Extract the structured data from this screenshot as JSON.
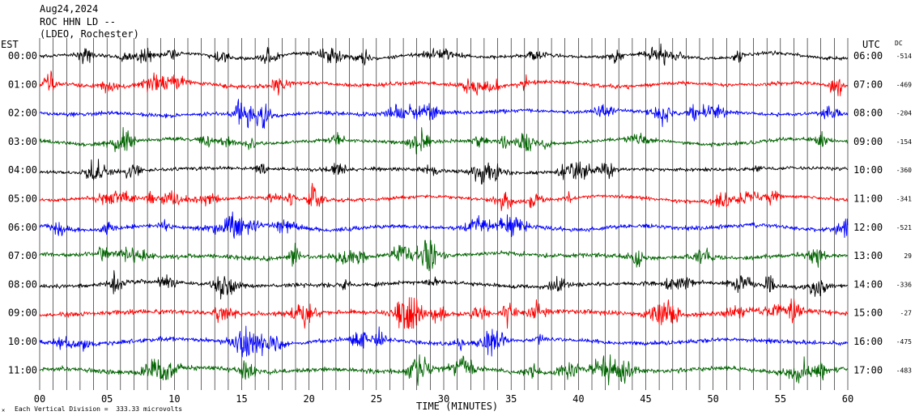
{
  "header": {
    "date": "Aug24,2024",
    "station": "ROC HHN LD --",
    "source": "(LDEO, Rochester)"
  },
  "left_timezone": "EST",
  "right_timezone": "UTC",
  "dc_header": "DC",
  "footer": {
    "vertical_division": "Each Vertical Division =  333.33 microvolts",
    "corner_mark": "✕"
  },
  "chart_data": {
    "type": "line",
    "title": "",
    "xlabel": "TIME (MINUTES)",
    "ylabel": "",
    "xlim": [
      0,
      60
    ],
    "x_ticks": [
      "00",
      "05",
      "10",
      "15",
      "20",
      "25",
      "30",
      "35",
      "40",
      "45",
      "50",
      "55",
      "60"
    ],
    "grid": true,
    "trace_colors": [
      "#000000",
      "#ff0000",
      "#0000ff",
      "#006400"
    ],
    "rows": [
      {
        "est": "00:00",
        "utc": "06:00",
        "dc": "-514",
        "color": "#000000",
        "amplitude": 0.9
      },
      {
        "est": "01:00",
        "utc": "07:00",
        "dc": "-469",
        "color": "#ff0000",
        "amplitude": 1.0
      },
      {
        "est": "02:00",
        "utc": "08:00",
        "dc": "-204",
        "color": "#0000ff",
        "amplitude": 1.0
      },
      {
        "est": "03:00",
        "utc": "09:00",
        "dc": "-154",
        "color": "#006400",
        "amplitude": 1.0
      },
      {
        "est": "04:00",
        "utc": "10:00",
        "dc": "-360",
        "color": "#000000",
        "amplitude": 0.9
      },
      {
        "est": "05:00",
        "utc": "11:00",
        "dc": "-341",
        "color": "#ff0000",
        "amplitude": 0.9
      },
      {
        "est": "06:00",
        "utc": "12:00",
        "dc": "-521",
        "color": "#0000ff",
        "amplitude": 1.1
      },
      {
        "est": "07:00",
        "utc": "13:00",
        "dc": "29",
        "color": "#006400",
        "amplitude": 1.1
      },
      {
        "est": "08:00",
        "utc": "14:00",
        "dc": "-336",
        "color": "#000000",
        "amplitude": 1.1
      },
      {
        "est": "09:00",
        "utc": "15:00",
        "dc": "-27",
        "color": "#ff0000",
        "amplitude": 1.2
      },
      {
        "est": "10:00",
        "utc": "16:00",
        "dc": "-475",
        "color": "#0000ff",
        "amplitude": 1.1
      },
      {
        "est": "11:00",
        "utc": "17:00",
        "dc": "-483",
        "color": "#006400",
        "amplitude": 1.2
      }
    ]
  }
}
